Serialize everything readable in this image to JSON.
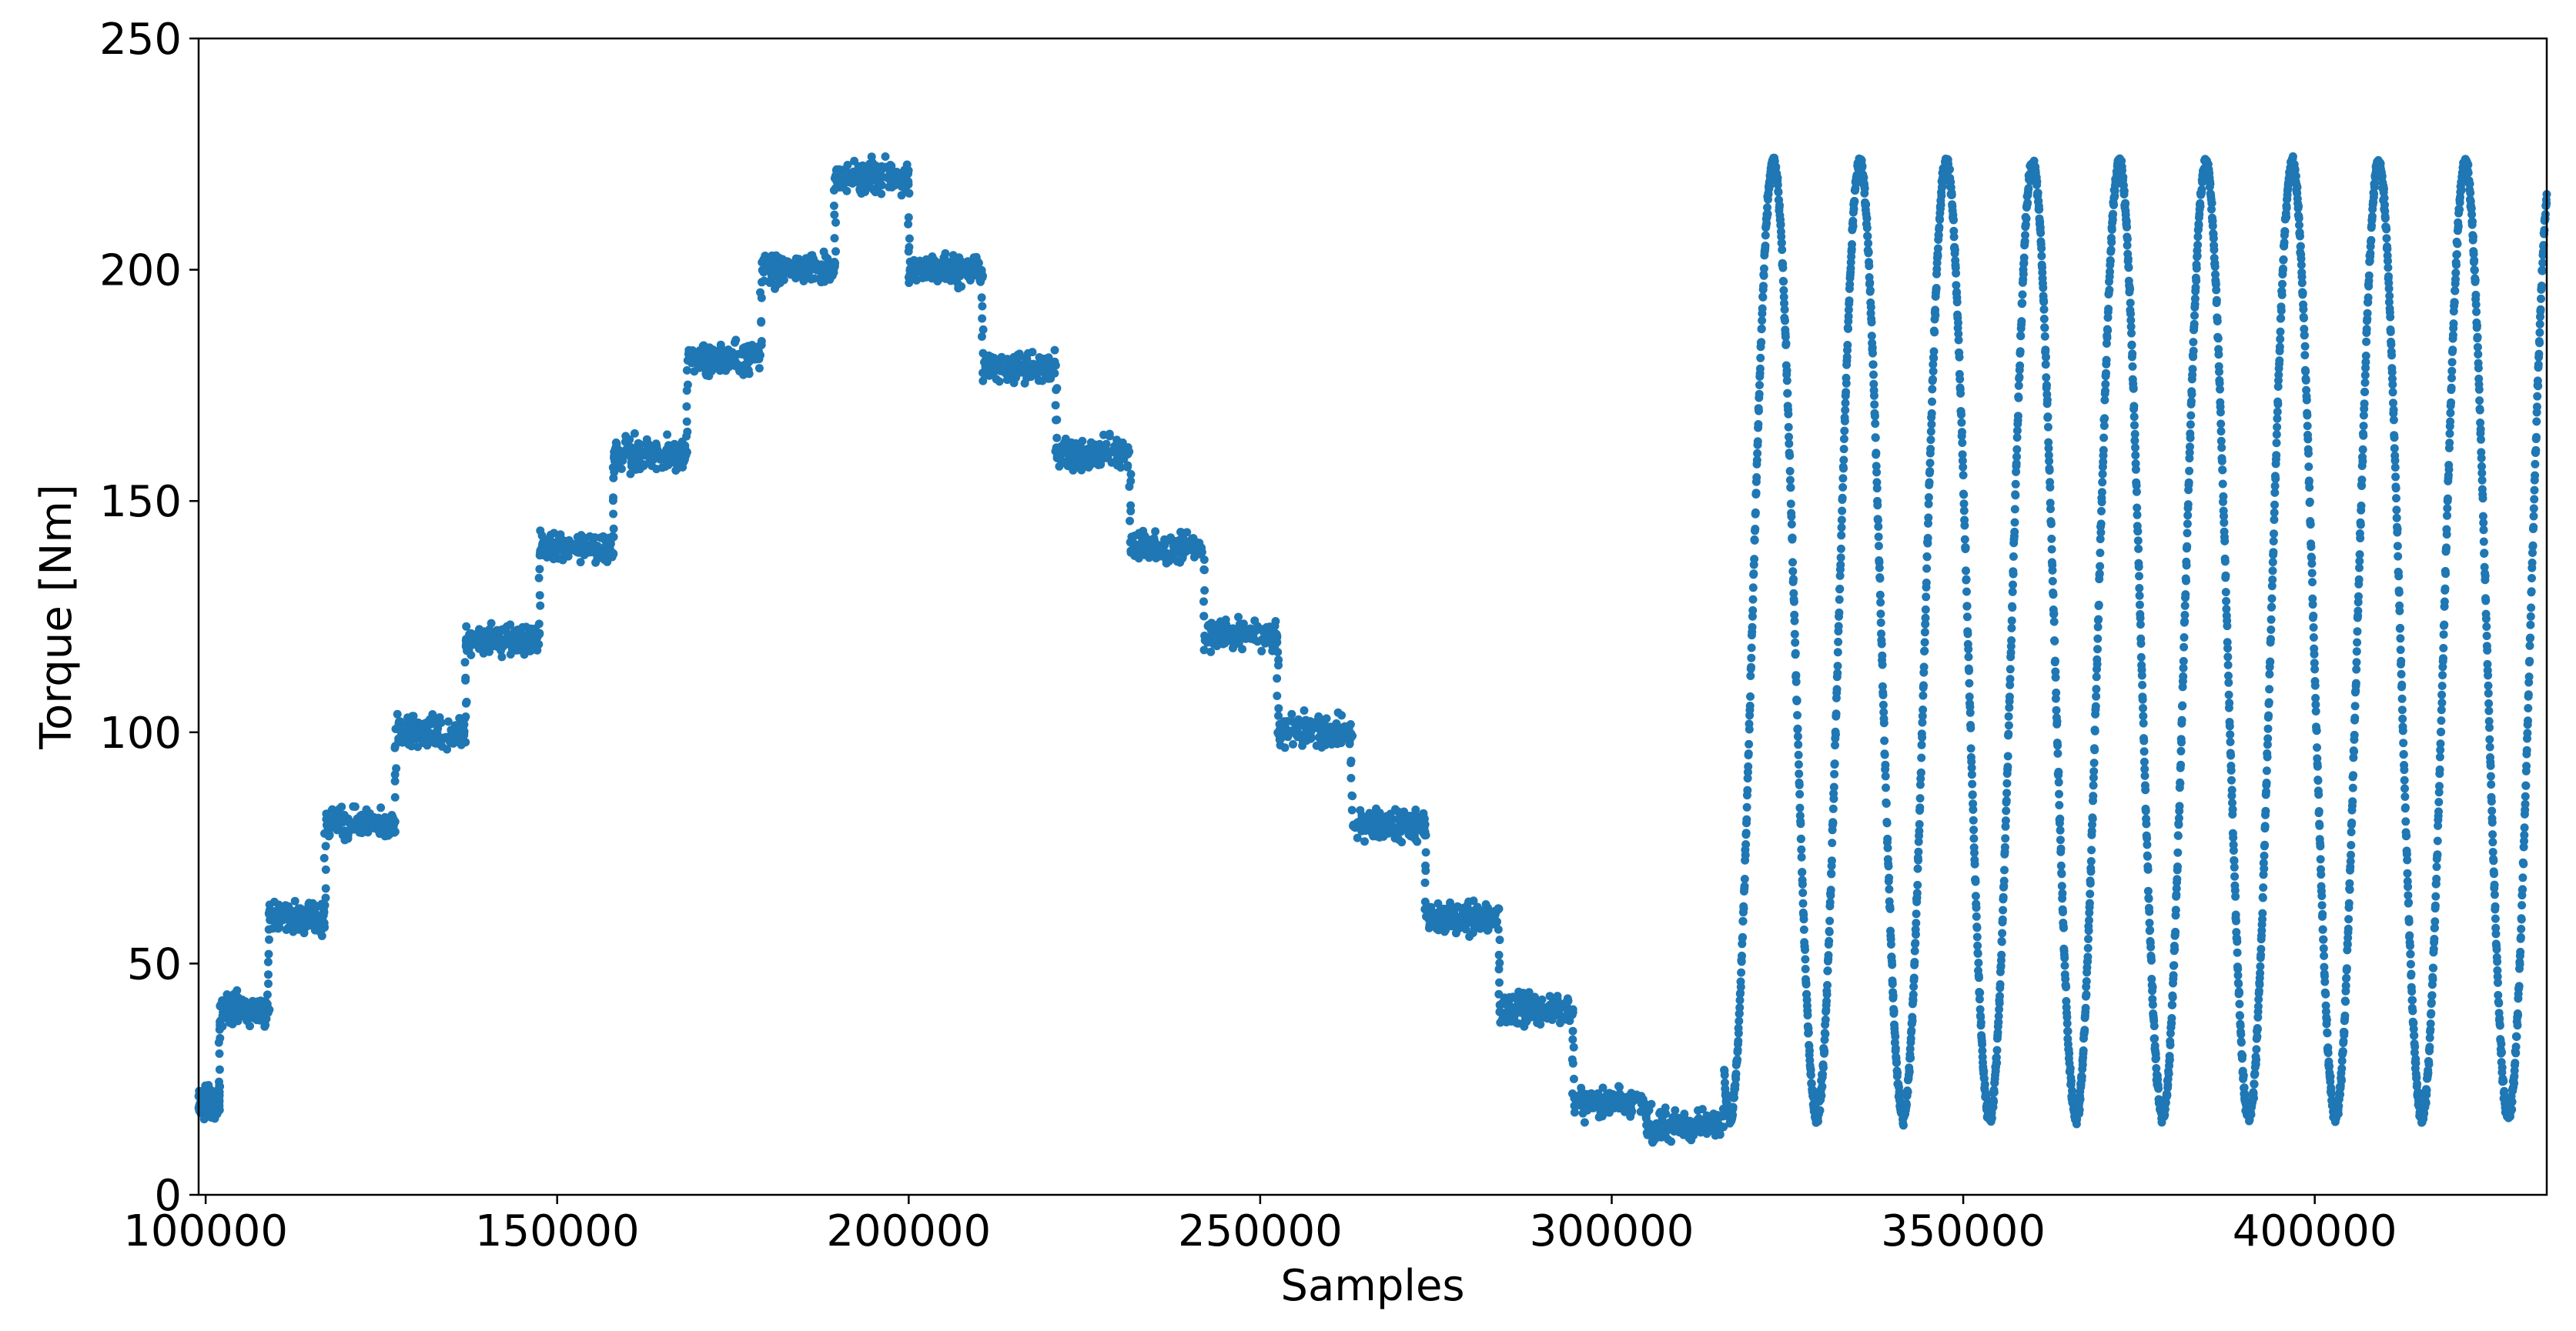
{
  "chart_data": {
    "type": "scatter",
    "title": "",
    "xlabel": "Samples",
    "ylabel": "Torque [Nm]",
    "xlim": [
      99000,
      433000
    ],
    "ylim": [
      0,
      250
    ],
    "xticks": [
      100000,
      150000,
      200000,
      250000,
      300000,
      350000,
      400000
    ],
    "xtick_labels": [
      "100000",
      "150000",
      "200000",
      "250000",
      "300000",
      "350000",
      "400000"
    ],
    "yticks": [
      0,
      50,
      100,
      150,
      200,
      250
    ],
    "ytick_labels": [
      "0",
      "50",
      "100",
      "150",
      "200",
      "250"
    ],
    "grid": false,
    "legend": false,
    "series_color": "#1f77b4",
    "steps": [
      {
        "x_start": 99000,
        "x_end": 102000,
        "y": 20
      },
      {
        "x_start": 102000,
        "x_end": 109000,
        "y": 40
      },
      {
        "x_start": 109000,
        "x_end": 117000,
        "y": 60
      },
      {
        "x_start": 117000,
        "x_end": 127000,
        "y": 80
      },
      {
        "x_start": 127000,
        "x_end": 137000,
        "y": 100
      },
      {
        "x_start": 137000,
        "x_end": 147500,
        "y": 120
      },
      {
        "x_start": 147500,
        "x_end": 158000,
        "y": 140
      },
      {
        "x_start": 158000,
        "x_end": 168500,
        "y": 160
      },
      {
        "x_start": 168500,
        "x_end": 179000,
        "y": 181
      },
      {
        "x_start": 179000,
        "x_end": 189500,
        "y": 200
      },
      {
        "x_start": 189500,
        "x_end": 200000,
        "y": 220
      },
      {
        "x_start": 200000,
        "x_end": 210500,
        "y": 200
      },
      {
        "x_start": 210500,
        "x_end": 221000,
        "y": 179
      },
      {
        "x_start": 221000,
        "x_end": 231500,
        "y": 160
      },
      {
        "x_start": 231500,
        "x_end": 242000,
        "y": 140
      },
      {
        "x_start": 242000,
        "x_end": 252500,
        "y": 121
      },
      {
        "x_start": 252500,
        "x_end": 263000,
        "y": 100
      },
      {
        "x_start": 263000,
        "x_end": 273500,
        "y": 80
      },
      {
        "x_start": 273500,
        "x_end": 284000,
        "y": 60
      },
      {
        "x_start": 284000,
        "x_end": 294500,
        "y": 40
      },
      {
        "x_start": 294500,
        "x_end": 305000,
        "y": 20
      },
      {
        "x_start": 305000,
        "x_end": 316000,
        "y": 15
      }
    ],
    "sine_segment": {
      "x_start": 316000,
      "x_end": 433000,
      "first_peak_x": 323000,
      "period": 12300,
      "min": 17,
      "max": 223
    }
  }
}
